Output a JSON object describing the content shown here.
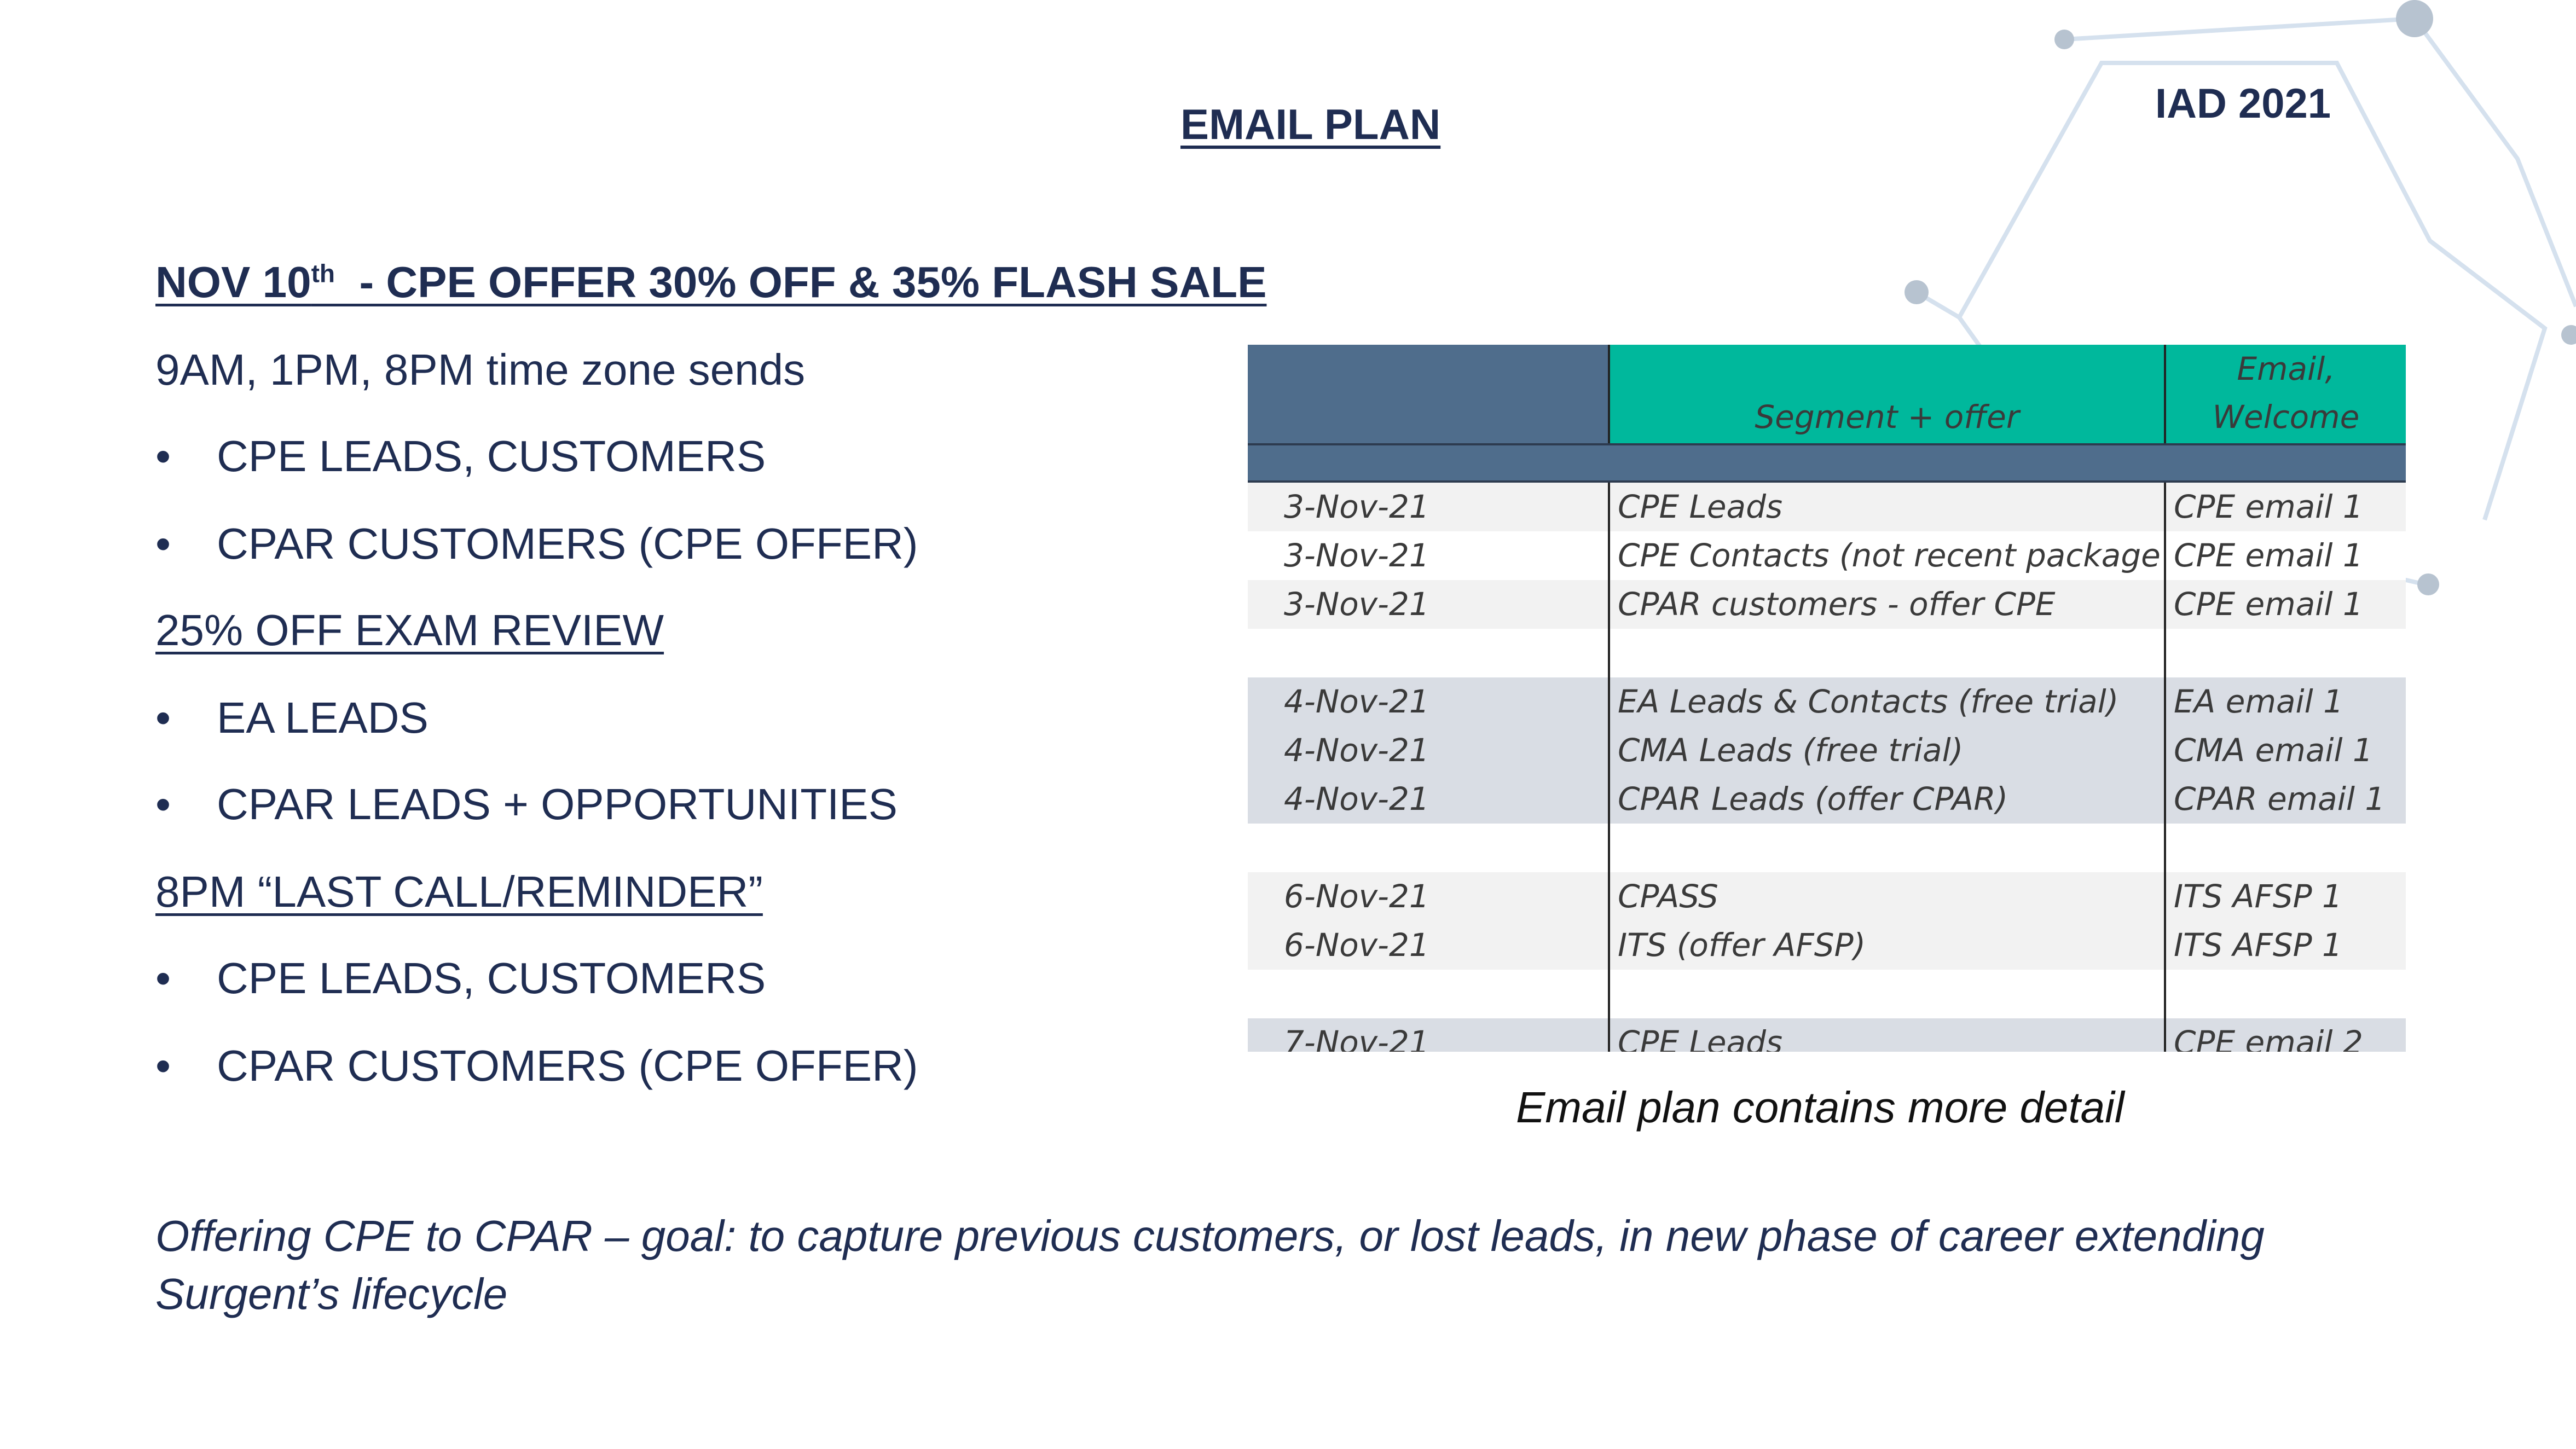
{
  "slide": {
    "title": "EMAIL PLAN",
    "year_tag": "IAD 2021"
  },
  "left": {
    "heading1_prefix": "NOV 10",
    "heading1_sup": "th",
    "heading1_suffix": "  - CPE OFFER 30% OFF & 35% FLASH SALE",
    "line_times": "9AM, 1PM, 8PM time zone sends",
    "bullets_a": [
      "CPE LEADS, CUSTOMERS",
      "CPAR CUSTOMERS (CPE OFFER)"
    ],
    "heading2": "25% OFF EXAM REVIEW",
    "bullets_b": [
      "EA LEADS",
      "CPAR LEADS + OPPORTUNITIES"
    ],
    "heading3": "8PM “LAST CALL/REMINDER”",
    "bullets_c": [
      "CPE LEADS, CUSTOMERS",
      "CPAR CUSTOMERS (CPE OFFER)"
    ],
    "bullet_glyph": "•"
  },
  "sheet": {
    "header": {
      "col2": "Segment + offer",
      "col3_line1": "Email,",
      "col3_line2": "Welcome"
    },
    "rows": [
      {
        "date": "3-Nov-21",
        "segment": "CPE Leads",
        "email": "CPE email 1",
        "shade": "light"
      },
      {
        "date": "3-Nov-21",
        "segment": "CPE Contacts (not recent package purchase)",
        "email": "CPE email 1",
        "shade": "white"
      },
      {
        "date": "3-Nov-21",
        "segment": "CPAR customers - offer CPE",
        "email": "CPE email 1",
        "shade": "light"
      },
      {
        "date": "",
        "segment": "",
        "email": "",
        "shade": "white"
      },
      {
        "date": "4-Nov-21",
        "segment": "EA Leads & Contacts (free trial)",
        "email": "EA email 1",
        "shade": "blue"
      },
      {
        "date": "4-Nov-21",
        "segment": "CMA Leads (free trial)",
        "email": "CMA email 1",
        "shade": "blue"
      },
      {
        "date": "4-Nov-21",
        "segment": "CPAR Leads (offer CPAR)",
        "email": "CPAR email 1",
        "shade": "blue"
      },
      {
        "date": "",
        "segment": "",
        "email": "",
        "shade": "white"
      },
      {
        "date": "6-Nov-21",
        "segment": "CPASS",
        "email": "ITS AFSP 1",
        "shade": "light"
      },
      {
        "date": "6-Nov-21",
        "segment": "ITS (offer AFSP)",
        "email": "ITS AFSP 1",
        "shade": "light"
      },
      {
        "date": "",
        "segment": "",
        "email": "",
        "shade": "white"
      },
      {
        "date": "7-Nov-21",
        "segment": "CPE Leads",
        "email": "CPE email 2",
        "shade": "blue"
      }
    ],
    "colors": {
      "header_dark": "#4f6d8c",
      "header_teal": "#00b89c",
      "row_light": "#f2f2f2",
      "row_blue": "#d9dde4",
      "row_white": "#ffffff"
    }
  },
  "caption": "Email plan contains more detail",
  "note": "Offering CPE to CPAR – goal: to capture previous customers, or lost leads, in new phase of career extending Surgent’s lifecycle"
}
